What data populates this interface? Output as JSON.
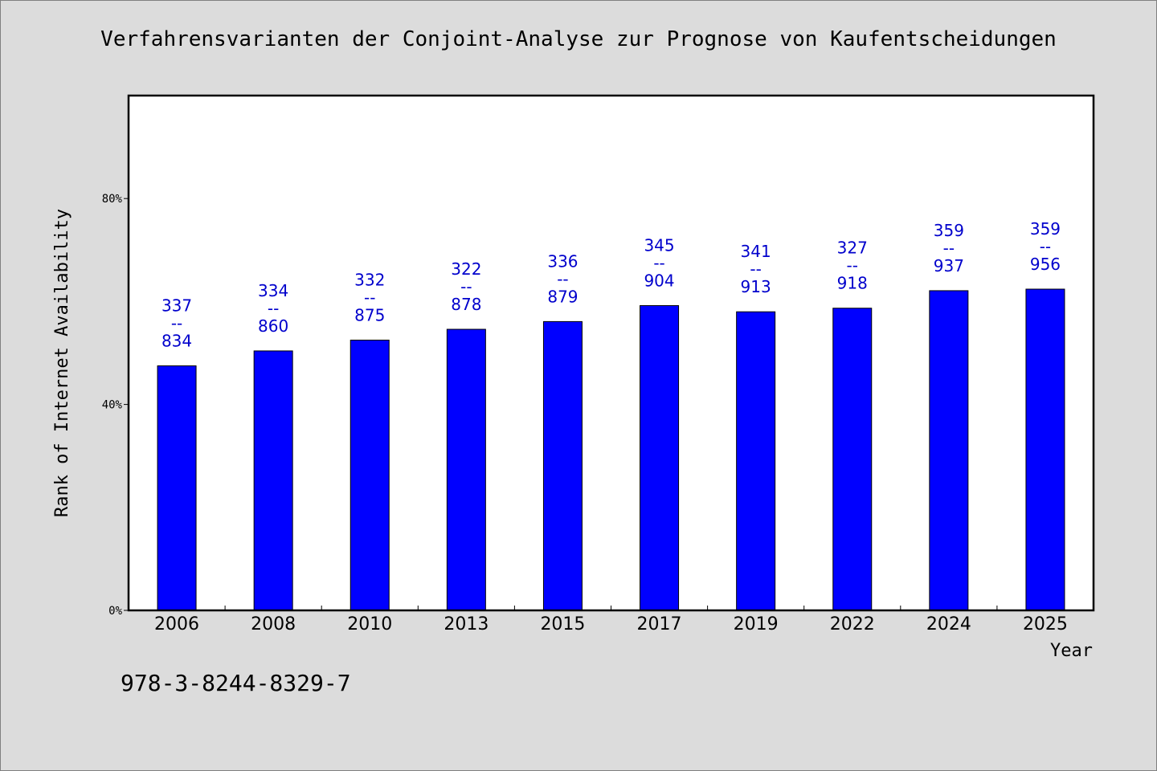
{
  "chart_data": {
    "type": "bar",
    "title": "Verfahrensvarianten der Conjoint-Analyse zur Prognose von Kaufentscheidungen",
    "xlabel": "Year",
    "ylabel": "Rank of Internet Availability",
    "categories": [
      "2006",
      "2008",
      "2010",
      "2013",
      "2015",
      "2017",
      "2019",
      "2022",
      "2024",
      "2025"
    ],
    "values": [
      47.5,
      50.4,
      52.5,
      54.6,
      56.1,
      59.2,
      58.0,
      58.7,
      62.1,
      62.4
    ],
    "value_unit": "%",
    "bar_labels": [
      [
        "337",
        "--",
        "834"
      ],
      [
        "334",
        "--",
        "860"
      ],
      [
        "332",
        "--",
        "875"
      ],
      [
        "322",
        "--",
        "878"
      ],
      [
        "336",
        "--",
        "879"
      ],
      [
        "345",
        "--",
        "904"
      ],
      [
        "341",
        "--",
        "913"
      ],
      [
        "327",
        "--",
        "918"
      ],
      [
        "359",
        "--",
        "937"
      ],
      [
        "359",
        "--",
        "956"
      ]
    ],
    "yticks": [
      {
        "value": 0,
        "label": "0%"
      },
      {
        "value": 40,
        "label": "40%"
      },
      {
        "value": 80,
        "label": "80%"
      }
    ],
    "ylim": [
      0,
      100
    ],
    "grid": false,
    "legend": "none",
    "colors": {
      "bar": "#0000ff",
      "bar_label": "#0000cc",
      "background": "#dcdcdc",
      "plot_background": "#ffffff"
    }
  },
  "footnote": "978-3-8244-8329-7"
}
